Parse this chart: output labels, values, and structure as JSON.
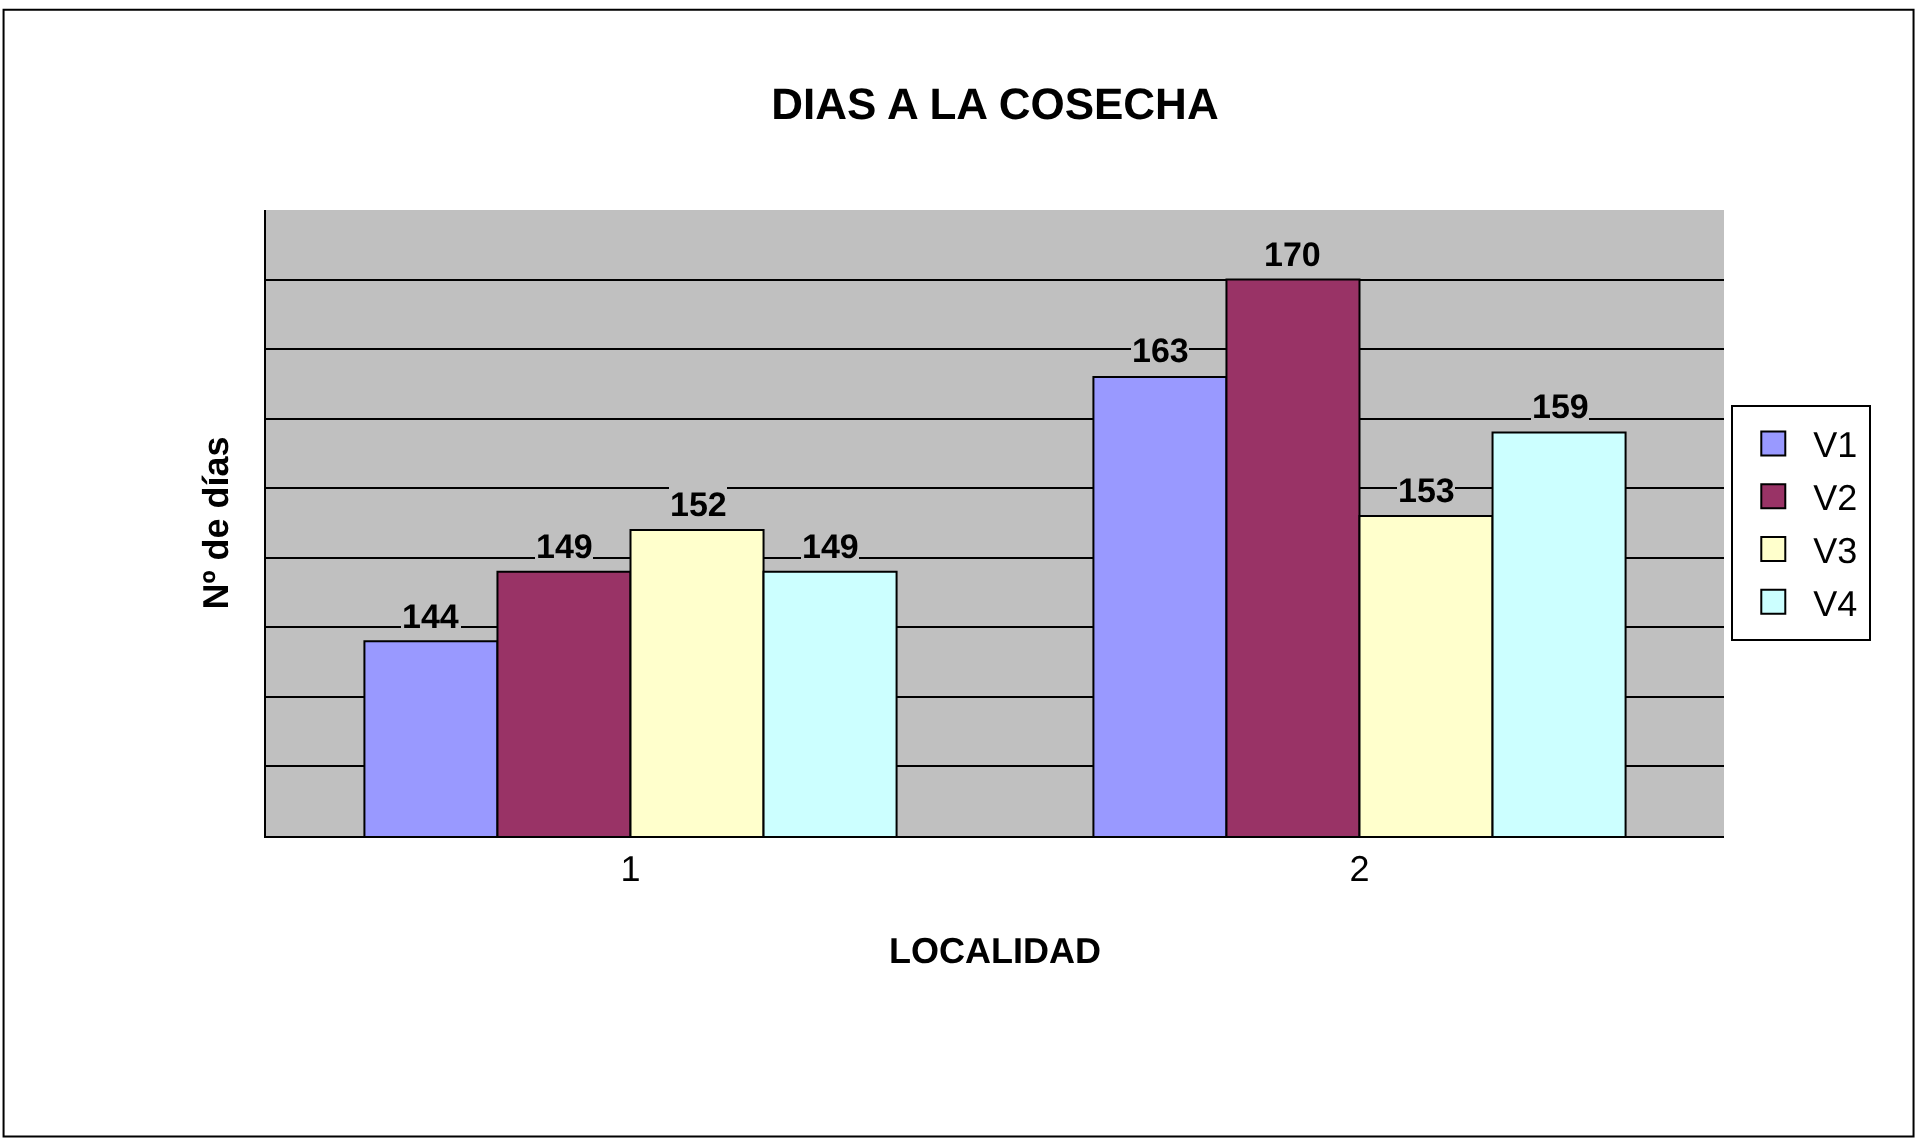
{
  "chart_data": {
    "type": "bar",
    "title": "DIAS A LA COSECHA",
    "xlabel": "LOCALIDAD",
    "ylabel": "Nº de días",
    "categories": [
      "1",
      "2"
    ],
    "series": [
      {
        "name": "V1",
        "color": "#9999ff",
        "values": [
          144,
          163
        ]
      },
      {
        "name": "V2",
        "color": "#993366",
        "values": [
          149,
          170
        ]
      },
      {
        "name": "V3",
        "color": "#ffffcc",
        "values": [
          152,
          153
        ]
      },
      {
        "name": "V4",
        "color": "#ccffff",
        "values": [
          149,
          159
        ]
      }
    ],
    "ylim": [
      130,
      175
    ],
    "yticks": [
      {
        "value": 130,
        "label": null
      },
      {
        "value": 135,
        "label": null
      },
      {
        "value": 140,
        "label": null
      },
      {
        "value": 145,
        "label": null
      },
      {
        "value": 150,
        "label": null
      },
      {
        "value": 155,
        "label": null
      },
      {
        "value": 160,
        "label": null
      },
      {
        "value": 165,
        "label": null
      },
      {
        "value": 170,
        "label": null
      },
      {
        "value": 175,
        "label": null
      }
    ],
    "tick_labels": "x",
    "grid": "y",
    "data_labels": true,
    "legend": "right"
  }
}
